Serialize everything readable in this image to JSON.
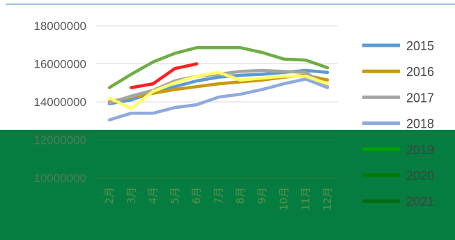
{
  "chart_data": {
    "type": "line",
    "title": "",
    "xlabel": "",
    "ylabel": "",
    "categories": [
      "2月",
      "3月",
      "4月",
      "5月",
      "6月",
      "7月",
      "8月",
      "9月",
      "10月",
      "11月",
      "12月"
    ],
    "y_ticks": [
      "18000000",
      "16000000",
      "14000000",
      "12000000",
      "10000000"
    ],
    "ylim": [
      9300000,
      18800000
    ],
    "grid": true,
    "legend_position": "right",
    "series": [
      {
        "name": "2015",
        "color": "#5b9bd5",
        "values": [
          13900000,
          14100000,
          14500000,
          14800000,
          15100000,
          15300000,
          15400000,
          15450000,
          15550000,
          15650000,
          15550000
        ]
      },
      {
        "name": "2016",
        "color": "#c9990e",
        "values": [
          14000000,
          14250000,
          14450000,
          14650000,
          14800000,
          14950000,
          15050000,
          15150000,
          15300000,
          15400000,
          15150000
        ]
      },
      {
        "name": "2017",
        "color": "#a5a5a5",
        "values": [
          13950000,
          14300000,
          14600000,
          15100000,
          15350000,
          15450000,
          15600000,
          15650000,
          15600000,
          15550000,
          14800000
        ]
      },
      {
        "name": "2018",
        "color": "#8faadc",
        "values": [
          13050000,
          13400000,
          13400000,
          13700000,
          13850000,
          14250000,
          14400000,
          14650000,
          14950000,
          15200000,
          14750000
        ]
      },
      {
        "name": "2019",
        "color": "#70ad47",
        "values": [
          14750000,
          15450000,
          16100000,
          16550000,
          16850000,
          16850000,
          16850000,
          16600000,
          16250000,
          16200000,
          15800000
        ]
      },
      {
        "name": "2020",
        "color": "#ff2020",
        "values": [
          null,
          14750000,
          14950000,
          15750000,
          16000000,
          null,
          null,
          null,
          null,
          null,
          null
        ]
      },
      {
        "name": "2021",
        "color": "#ffff66",
        "values": [
          14200000,
          13650000,
          14550000,
          15000000,
          15350000,
          15550000,
          15150000,
          15250000,
          15350000,
          15350000,
          14950000
        ]
      }
    ],
    "legend_markers": [
      {
        "name": "2015",
        "color": "#5b9bd5"
      },
      {
        "name": "2016",
        "color": "#c9990e"
      },
      {
        "name": "2017",
        "color": "#a5a5a5"
      },
      {
        "name": "2018",
        "color": "#8faadc"
      },
      {
        "name": "2019",
        "color": "#00a000"
      },
      {
        "name": "2020",
        "color": "#007a00"
      },
      {
        "name": "2021",
        "color": "#006a10"
      }
    ],
    "overlay_color": "#067d40",
    "top_rule_color": "#9dc3e6",
    "grid_color": "#d9d9d9"
  }
}
